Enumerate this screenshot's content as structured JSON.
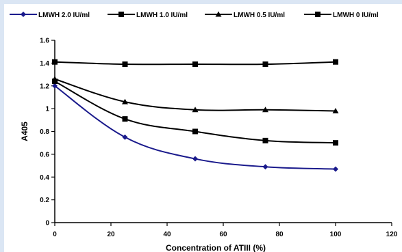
{
  "chart_data": {
    "type": "line",
    "title": "",
    "xlabel": "Concentration of ATIII (%)",
    "ylabel": "A405",
    "xlim": [
      0,
      120
    ],
    "ylim": [
      0,
      1.6
    ],
    "xticks": [
      "0",
      "20",
      "40",
      "60",
      "80",
      "100",
      "120"
    ],
    "yticks": [
      "0",
      "0.2",
      "0.4",
      "0.6",
      "0.8",
      "1",
      "1.2",
      "1.4",
      "1.6"
    ],
    "grid": false,
    "legend_position": "top",
    "x": [
      0,
      25,
      50,
      75,
      100
    ],
    "series": [
      {
        "name": "LMWH 2.0 IU/ml",
        "color": "#1a1a8c",
        "marker": "diamond",
        "values": [
          1.2,
          0.75,
          0.56,
          0.49,
          0.47
        ]
      },
      {
        "name": "LMWH 1.0 IU/ml",
        "color": "#000000",
        "marker": "square",
        "values": [
          1.24,
          0.91,
          0.8,
          0.72,
          0.7
        ]
      },
      {
        "name": "LMWH 0.5 IU/ml",
        "color": "#000000",
        "marker": "triangle",
        "values": [
          1.26,
          1.06,
          0.99,
          0.99,
          0.98
        ]
      },
      {
        "name": "LMWH 0 IU/ml",
        "color": "#000000",
        "marker": "square",
        "values": [
          1.41,
          1.39,
          1.39,
          1.39,
          1.41
        ]
      }
    ]
  }
}
